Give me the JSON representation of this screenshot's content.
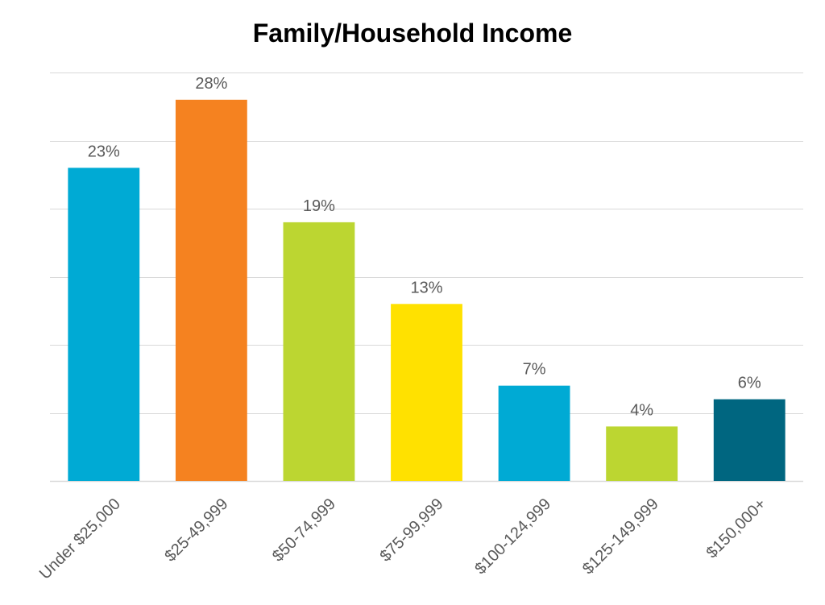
{
  "chart_data": {
    "type": "bar",
    "title": "Family/Household Income",
    "xlabel": "",
    "ylabel": "",
    "categories": [
      "Under $25,000",
      "$25-49,999",
      "$50-74,999",
      "$75-99,999",
      "$100-124,999",
      "$125-149,999",
      "$150,000+"
    ],
    "values": [
      23,
      28,
      19,
      13,
      7,
      4,
      6
    ],
    "data_labels": [
      "23%",
      "28%",
      "19%",
      "13%",
      "7%",
      "4%",
      "6%"
    ],
    "colors": [
      "#00AAD4",
      "#F58220",
      "#BCD631",
      "#FFE100",
      "#00AAD4",
      "#BCD631",
      "#006680"
    ],
    "ylim": [
      0,
      30
    ],
    "y_axis_visible": false,
    "grid": true,
    "legend": "none"
  }
}
